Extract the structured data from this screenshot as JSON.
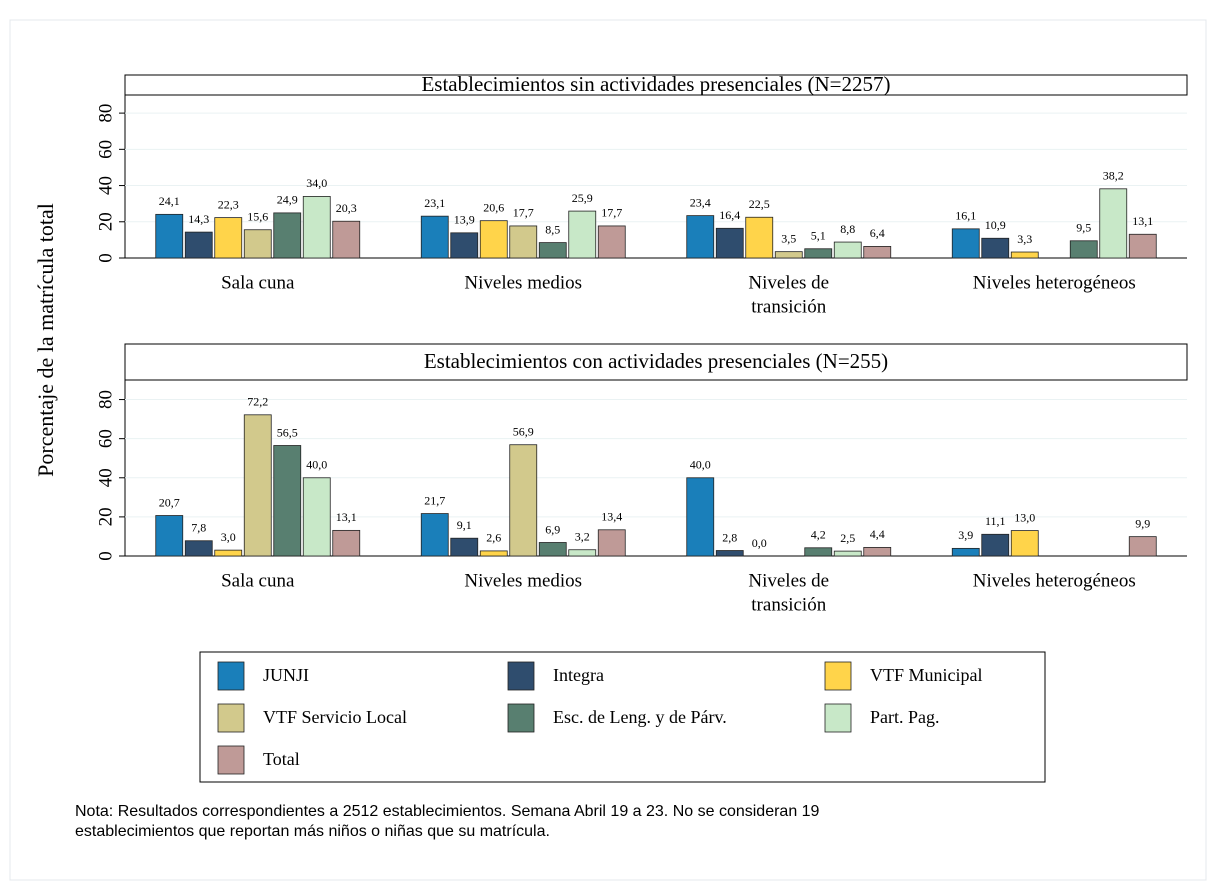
{
  "y_label": "Porcentaje de la matrícula total",
  "note": [
    "Nota: Resultados correspondientes a 2512 establecimientos. Semana Abril 19 a 23. No se consideran 19",
    "establecimientos que reportan más niños o niñas que su matrícula."
  ],
  "chart_data": [
    {
      "type": "bar",
      "title": "Establecimientos sin actividades presenciales (N=2257)",
      "categories": [
        "Sala cuna",
        "Niveles medios",
        [
          "Niveles de",
          "transición"
        ],
        "Niveles heterogéneos"
      ],
      "ylim": [
        0,
        90
      ],
      "yticks": [
        0,
        20,
        40,
        60,
        80
      ],
      "series": [
        {
          "name": "JUNJI",
          "color": "#1a7fba",
          "values": [
            24.1,
            23.1,
            23.4,
            16.1
          ],
          "value_labels": [
            "24,1",
            "23,1",
            "23,4",
            "16,1"
          ]
        },
        {
          "name": "Integra",
          "color": "#2f4d6e",
          "values": [
            14.3,
            13.9,
            16.4,
            10.9
          ],
          "value_labels": [
            "14,3",
            "13,9",
            "16,4",
            "10,9"
          ]
        },
        {
          "name": "VTF Municipal",
          "color": "#ffd44a",
          "values": [
            22.3,
            20.6,
            22.5,
            3.3
          ],
          "value_labels": [
            "22,3",
            "20,6",
            "22,5",
            "3,3"
          ]
        },
        {
          "name": "VTF Servicio Local",
          "color": "#d2c98c",
          "values": [
            15.6,
            17.7,
            3.5,
            null
          ],
          "value_labels": [
            "15,6",
            "17,7",
            "3,5",
            null
          ]
        },
        {
          "name": "Esc. de Leng. y de Párv.",
          "color": "#587f70",
          "values": [
            24.9,
            8.5,
            5.1,
            9.5
          ],
          "value_labels": [
            "24,9",
            "8,5",
            "5,1",
            "9,5"
          ]
        },
        {
          "name": "Part. Pag.",
          "color": "#c8e8c8",
          "values": [
            34.0,
            25.9,
            8.8,
            38.2
          ],
          "value_labels": [
            "34,0",
            "25,9",
            "8,8",
            "38,2"
          ]
        },
        {
          "name": "Total",
          "color": "#bf9a97",
          "values": [
            20.3,
            17.7,
            6.4,
            13.1
          ],
          "value_labels": [
            "20,3",
            "17,7",
            "6,4",
            "13,1"
          ]
        }
      ]
    },
    {
      "type": "bar",
      "title": "Establecimientos con actividades presenciales (N=255)",
      "categories": [
        "Sala cuna",
        "Niveles medios",
        [
          "Niveles de",
          "transición"
        ],
        "Niveles heterogéneos"
      ],
      "ylim": [
        0,
        90
      ],
      "yticks": [
        0,
        20,
        40,
        60,
        80
      ],
      "series": [
        {
          "values": [
            20.7,
            21.7,
            40.0,
            3.9
          ],
          "value_labels": [
            "20,7",
            "21,7",
            "40,0",
            "3,9"
          ]
        },
        {
          "values": [
            7.8,
            9.1,
            2.8,
            11.1
          ],
          "value_labels": [
            "7,8",
            "9,1",
            "2,8",
            "11,1"
          ]
        },
        {
          "values": [
            3.0,
            2.6,
            0.0,
            13.0
          ],
          "value_labels": [
            "3,0",
            "2,6",
            "0,0",
            "13,0"
          ]
        },
        {
          "values": [
            72.2,
            56.9,
            null,
            null
          ],
          "value_labels": [
            "72,2",
            "56,9",
            null,
            null
          ]
        },
        {
          "values": [
            56.5,
            6.9,
            4.2,
            null
          ],
          "value_labels": [
            "56,5",
            "6,9",
            "4,2",
            null
          ]
        },
        {
          "values": [
            40.0,
            3.2,
            2.5,
            null
          ],
          "value_labels": [
            "40,0",
            "3,2",
            "2,5",
            null
          ]
        },
        {
          "values": [
            13.1,
            13.4,
            4.4,
            9.9
          ],
          "value_labels": [
            "13,1",
            "13,4",
            "4,4",
            "9,9"
          ]
        }
      ]
    }
  ]
}
